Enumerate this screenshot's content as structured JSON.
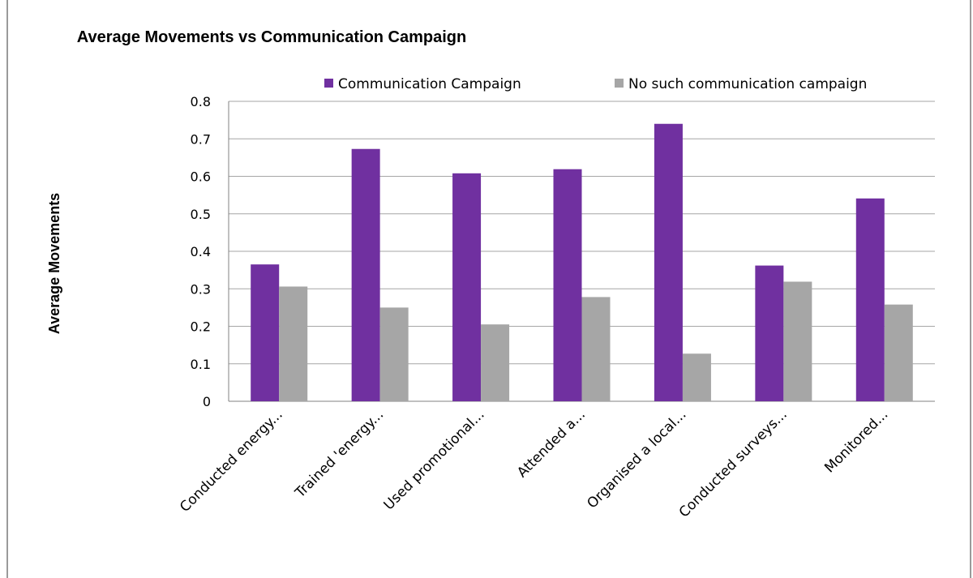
{
  "chart_data": {
    "type": "bar",
    "title": "Average Movements vs Communication Campaign",
    "xlabel": "",
    "ylabel": "Average Movements",
    "ylim": [
      0,
      0.8
    ],
    "yticks": [
      "0",
      "0.1",
      "0.2",
      "0.3",
      "0.4",
      "0.5",
      "0.6",
      "0.7",
      "0.8"
    ],
    "categories": [
      "Conducted energy...",
      "Trained 'energy...",
      "Used promotional...",
      "Attended a...",
      "Organised a local...",
      "Conducted surveys...",
      "Monitored..."
    ],
    "series": [
      {
        "name": "Communication Campaign",
        "color": "#7030a0",
        "values": [
          0.365,
          0.673,
          0.608,
          0.619,
          0.74,
          0.362,
          0.541
        ]
      },
      {
        "name": "No such communication campaign",
        "color": "#a6a6a6",
        "values": [
          0.306,
          0.25,
          0.205,
          0.278,
          0.127,
          0.319,
          0.258
        ]
      }
    ],
    "grid": true,
    "legend_position": "top-right"
  }
}
